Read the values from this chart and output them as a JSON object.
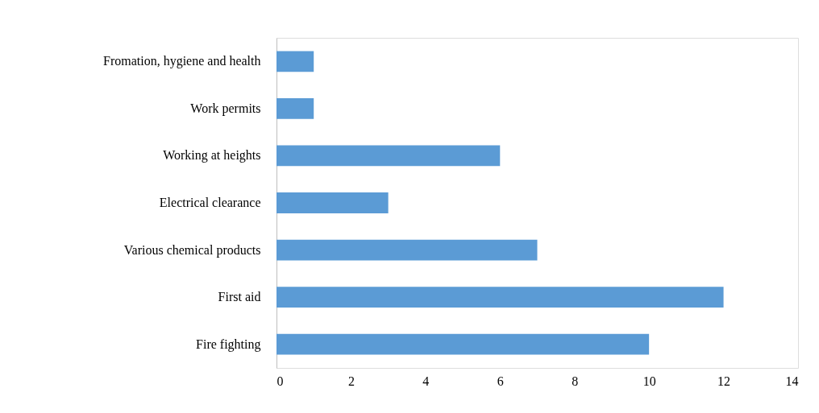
{
  "chart_data": {
    "type": "bar",
    "orientation": "horizontal",
    "categories": [
      "Fromation, hygiene and health",
      "Work permits",
      "Working at heights",
      "Electrical clearance",
      "Various chemical products",
      "First aid",
      "Fire fighting"
    ],
    "values": [
      1,
      1,
      6,
      3,
      7,
      12,
      10
    ],
    "color": "#5b9bd5",
    "xlim": [
      0,
      14
    ],
    "xticks": [
      0,
      2,
      4,
      6,
      8,
      10,
      12,
      14
    ],
    "grid": false
  }
}
